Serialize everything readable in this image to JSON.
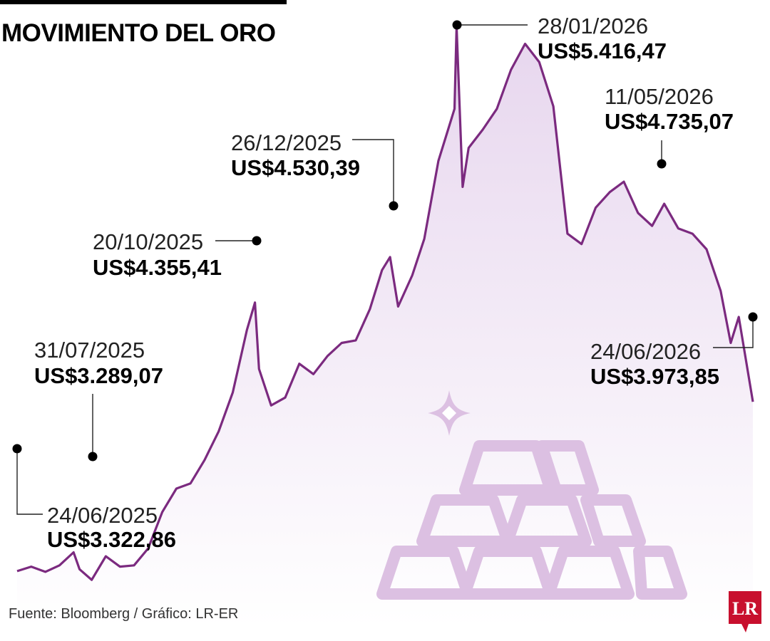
{
  "title": "MOVIMIENTO DEL ORO",
  "source": "Fuente: Bloomberg / Gráfico: LR-ER",
  "logo_text": "LR",
  "colors": {
    "line": "#7b2a7f",
    "area_top": "#e7d6ee",
    "area_bottom": "#ffffff",
    "ingots": "#dcc0e2",
    "logo": "#c8102e"
  },
  "icons": [
    "sparkle-icon",
    "gold-ingots-icon",
    "lr-logo-icon"
  ],
  "chart_data": {
    "type": "area",
    "title": "MOVIMIENTO DEL ORO",
    "xlabel": "",
    "ylabel": "",
    "unit": "US$",
    "grid": false,
    "legend": "none",
    "x_range": [
      "24/06/2025",
      "24/06/2026"
    ],
    "ylim": [
      3150,
      5450
    ],
    "series": [
      {
        "points": [
          [
            "24/06/2025",
            3322.86
          ],
          [
            "01/07/2025",
            3340
          ],
          [
            "08/07/2025",
            3320
          ],
          [
            "15/07/2025",
            3345
          ],
          [
            "22/07/2025",
            3395
          ],
          [
            "25/07/2025",
            3330
          ],
          [
            "31/07/2025",
            3289.07
          ],
          [
            "07/08/2025",
            3380
          ],
          [
            "14/08/2025",
            3340
          ],
          [
            "21/08/2025",
            3345
          ],
          [
            "28/08/2025",
            3410
          ],
          [
            "04/09/2025",
            3550
          ],
          [
            "11/09/2025",
            3640
          ],
          [
            "18/09/2025",
            3660
          ],
          [
            "25/09/2025",
            3750
          ],
          [
            "02/10/2025",
            3860
          ],
          [
            "09/10/2025",
            4010
          ],
          [
            "16/10/2025",
            4250
          ],
          [
            "20/10/2025",
            4355.41
          ],
          [
            "22/10/2025",
            4100
          ],
          [
            "28/10/2025",
            3960
          ],
          [
            "04/11/2025",
            3990
          ],
          [
            "11/11/2025",
            4120
          ],
          [
            "18/11/2025",
            4080
          ],
          [
            "25/11/2025",
            4150
          ],
          [
            "02/12/2025",
            4200
          ],
          [
            "09/12/2025",
            4210
          ],
          [
            "16/12/2025",
            4330
          ],
          [
            "22/12/2025",
            4480
          ],
          [
            "26/12/2025",
            4530.39
          ],
          [
            "30/12/2025",
            4340
          ],
          [
            "06/01/2026",
            4460
          ],
          [
            "12/01/2026",
            4600
          ],
          [
            "19/01/2026",
            4900
          ],
          [
            "27/01/2026",
            5100
          ],
          [
            "28/01/2026",
            5416.47
          ],
          [
            "31/01/2026",
            4800
          ],
          [
            "03/02/2026",
            4950
          ],
          [
            "10/02/2026",
            5020
          ],
          [
            "17/02/2026",
            5100
          ],
          [
            "24/02/2026",
            5250
          ],
          [
            "03/03/2026",
            5350
          ],
          [
            "10/03/2026",
            5280
          ],
          [
            "17/03/2026",
            5110
          ],
          [
            "24/03/2026",
            4620
          ],
          [
            "31/03/2026",
            4580
          ],
          [
            "07/04/2026",
            4720
          ],
          [
            "14/04/2026",
            4780
          ],
          [
            "21/04/2026",
            4820
          ],
          [
            "28/04/2026",
            4700
          ],
          [
            "05/05/2026",
            4650
          ],
          [
            "11/05/2026",
            4735.07
          ],
          [
            "18/05/2026",
            4640
          ],
          [
            "25/05/2026",
            4620
          ],
          [
            "01/06/2026",
            4560
          ],
          [
            "08/06/2026",
            4400
          ],
          [
            "13/06/2026",
            4200
          ],
          [
            "17/06/2026",
            4300
          ],
          [
            "24/06/2026",
            3973.85
          ]
        ]
      }
    ],
    "annotations": [
      {
        "date": "24/06/2025",
        "value": "US$3.322,86"
      },
      {
        "date": "31/07/2025",
        "value": "US$3.289,07"
      },
      {
        "date": "20/10/2025",
        "value": "US$4.355,41"
      },
      {
        "date": "26/12/2025",
        "value": "US$4.530,39"
      },
      {
        "date": "28/01/2026",
        "value": "US$5.416,47"
      },
      {
        "date": "11/05/2026",
        "value": "US$4.735,07"
      },
      {
        "date": "24/06/2026",
        "value": "US$3.973,85"
      }
    ]
  }
}
